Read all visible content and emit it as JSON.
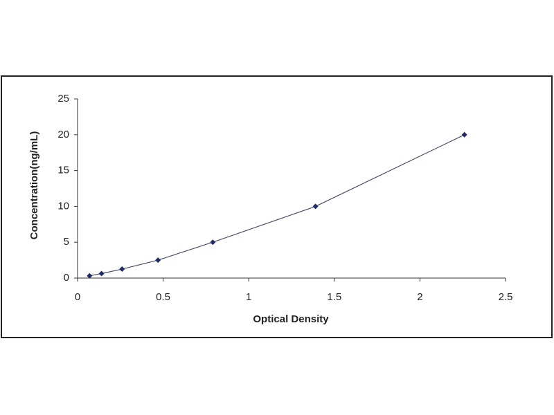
{
  "chart_data": {
    "type": "scatter",
    "x_label": "Optical Density",
    "y_label": "Concentration(ng/mL)",
    "x": [
      0.07,
      0.14,
      0.26,
      0.47,
      0.79,
      1.39,
      2.26
    ],
    "series": [
      {
        "color": "#1f2a6b",
        "values": [
          0.31,
          0.63,
          1.25,
          2.5,
          5,
          10,
          20
        ]
      }
    ],
    "trendline": true,
    "trendline_color": "#4a4f6a",
    "xlim": [
      0,
      2.5
    ],
    "xticks": [
      0,
      0.5,
      1,
      1.5,
      2,
      2.5
    ],
    "ylim": [
      0,
      25
    ],
    "yticks": [
      0,
      5,
      10,
      15,
      20,
      25
    ],
    "grid": false
  }
}
